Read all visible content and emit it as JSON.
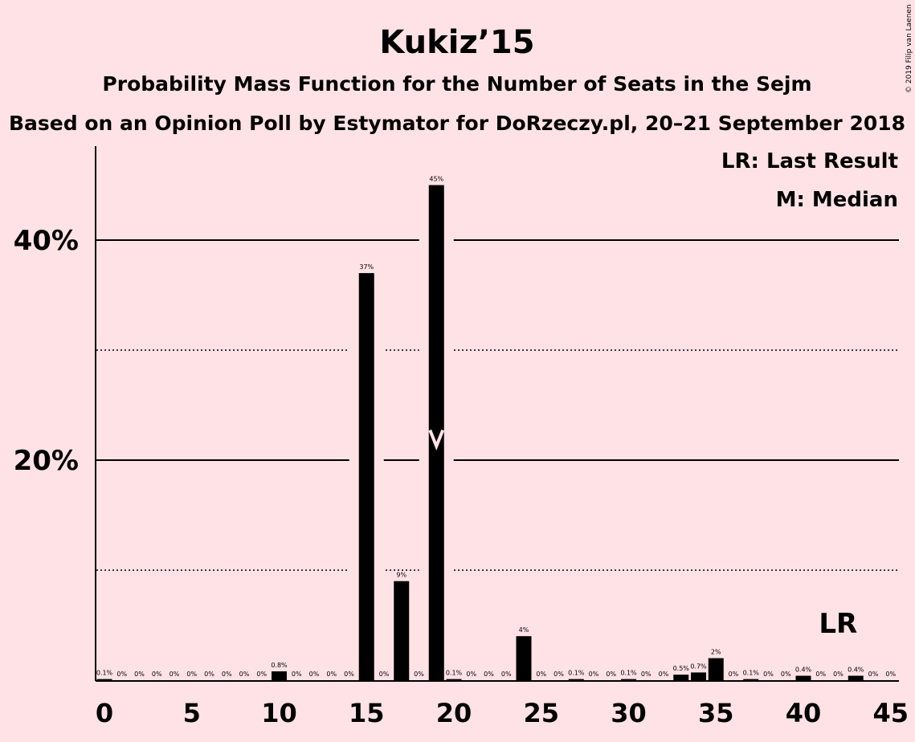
{
  "chart_data": {
    "type": "bar",
    "title": "Kukiz’15",
    "subtitle": "Probability Mass Function for the Number of Seats in the Sejm",
    "subtitle2": "Based on an Opinion Poll by Estymator for DoRzeczy.pl, 20–21 September 2018",
    "copyright": "© 2019 Filip van Laenen",
    "legend": {
      "lr": "LR: Last Result",
      "median": "M: Median",
      "placement": "top-right"
    },
    "xlabel": "",
    "ylabel": "",
    "x": [
      0,
      1,
      2,
      3,
      4,
      5,
      6,
      7,
      8,
      9,
      10,
      11,
      12,
      13,
      14,
      15,
      16,
      17,
      18,
      19,
      20,
      21,
      22,
      23,
      24,
      25,
      26,
      27,
      28,
      29,
      30,
      31,
      32,
      33,
      34,
      35,
      36,
      37,
      38,
      39,
      40,
      41,
      42,
      43,
      44,
      45
    ],
    "values": [
      0.1,
      0,
      0,
      0,
      0,
      0,
      0,
      0,
      0,
      0,
      0.8,
      0,
      0,
      0,
      0,
      37,
      0,
      9,
      0,
      45,
      0.1,
      0,
      0,
      0,
      4,
      0,
      0,
      0.1,
      0,
      0,
      0.1,
      0,
      0,
      0.5,
      0.7,
      2,
      0,
      0.1,
      0,
      0,
      0.4,
      0,
      0,
      0.4,
      0,
      0
    ],
    "data_labels": [
      "0.1%",
      "0%",
      "0%",
      "0%",
      "0%",
      "0%",
      "0%",
      "0%",
      "0%",
      "0%",
      "0.8%",
      "0%",
      "0%",
      "0%",
      "0%",
      "37%",
      "0%",
      "9%",
      "0%",
      "45%",
      "0.1%",
      "0%",
      "0%",
      "0%",
      "4%",
      "0%",
      "0%",
      "0.1%",
      "0%",
      "0%",
      "0.1%",
      "0%",
      "0%",
      "0.5%",
      "0.7%",
      "2%",
      "0%",
      "0.1%",
      "0%",
      "0%",
      "0.4%",
      "0%",
      "0%",
      "0.4%",
      "0%",
      "0%"
    ],
    "xticks": [
      "0",
      "5",
      "10",
      "15",
      "20",
      "25",
      "30",
      "35",
      "40",
      "45"
    ],
    "yticks": [
      "20%",
      "40%"
    ],
    "ylim": [
      0,
      48.5
    ],
    "gridlines": {
      "solid": [
        20,
        40
      ],
      "dotted": [
        10,
        30
      ]
    },
    "median_seat": 19,
    "median_marker": "M",
    "last_result_seat": 43,
    "last_result_marker": "LR",
    "bar_color": "#000000",
    "background": "#FFE2E6"
  }
}
